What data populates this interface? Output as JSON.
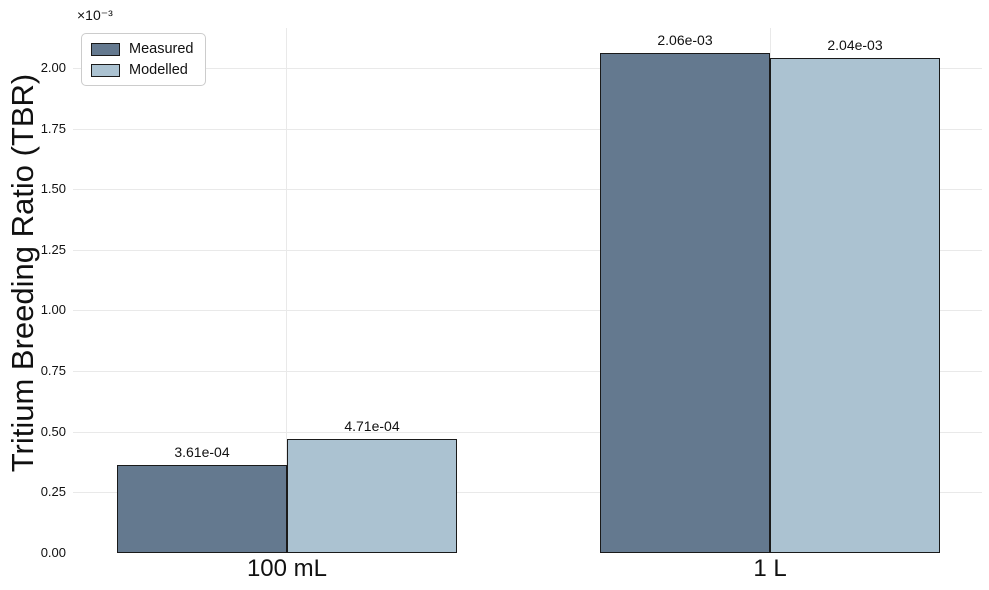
{
  "chart_data": {
    "type": "bar",
    "title": "",
    "xlabel": "",
    "ylabel": "Tritium Breeding Ratio (TBR)",
    "y_axis_offset_text": "×10⁻³",
    "categories": [
      "100 mL",
      "1 L"
    ],
    "series": [
      {
        "name": "Measured",
        "color": "#64798F",
        "values": [
          0.000361,
          0.00206
        ],
        "bar_labels": [
          "3.61e-04",
          "2.06e-03"
        ]
      },
      {
        "name": "Modelled",
        "color": "#ABC2D1",
        "values": [
          0.000471,
          0.00204
        ],
        "bar_labels": [
          "4.71e-04",
          "2.04e-03"
        ]
      }
    ],
    "y_tick_labels": [
      "0.00",
      "0.25",
      "0.50",
      "0.75",
      "1.00",
      "1.25",
      "1.50",
      "1.75",
      "2.00"
    ],
    "y_tick_unit": 0.001,
    "ylim": [
      0,
      0.0021649
    ],
    "grid": true,
    "legend_position": "upper left",
    "colors": {
      "bar_edge": "#1A1A1A",
      "grid": "#E9E9E9",
      "background": "#FFFFFF",
      "text": "#111111",
      "legend_border": "#CCCCCC"
    }
  }
}
